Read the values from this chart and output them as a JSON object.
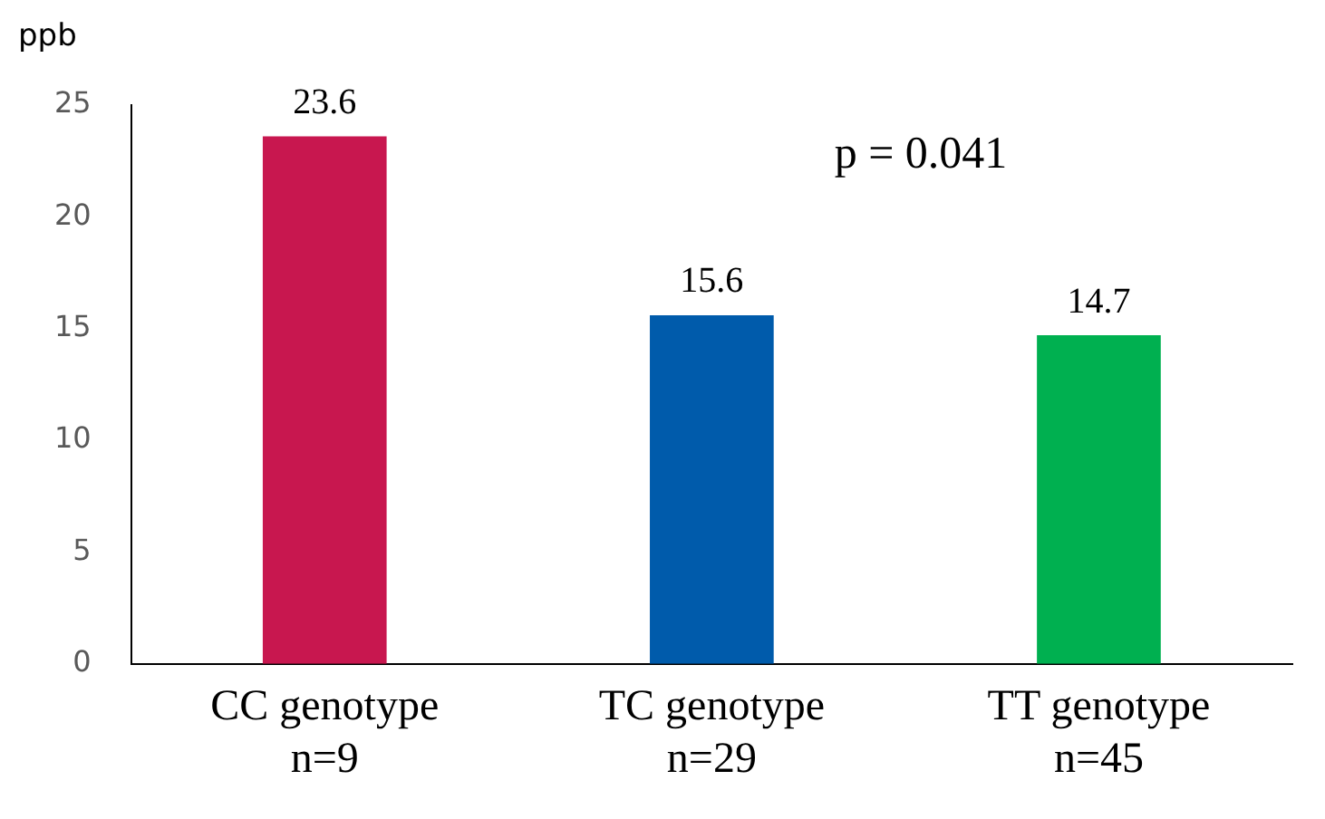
{
  "chart_data": {
    "type": "bar",
    "ylabel": "ppb",
    "categories": [
      "CC genotype\nn=9",
      "TC genotype\nn=29",
      "TT genotype\nn=45"
    ],
    "values": [
      23.6,
      15.6,
      14.7
    ],
    "colors": [
      "#c8174f",
      "#005bab",
      "#00b050"
    ],
    "ylim": [
      0,
      25
    ],
    "yticks": [
      0,
      5,
      10,
      15,
      20,
      25
    ],
    "grid": false,
    "legend": false,
    "data_labels": true,
    "annotations": [
      "p = 0.041"
    ]
  }
}
